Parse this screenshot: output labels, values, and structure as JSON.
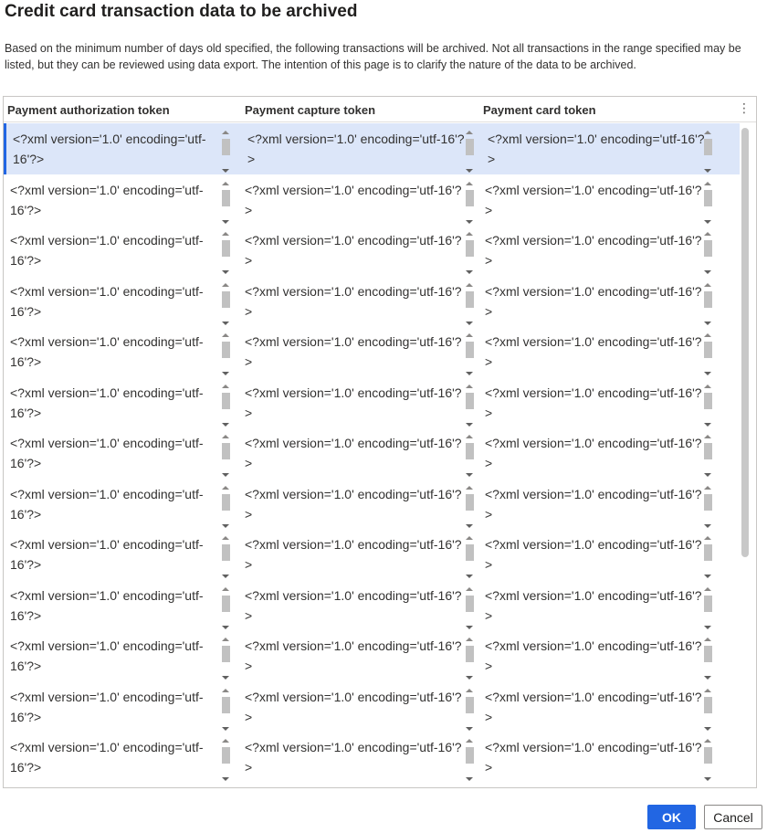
{
  "dialog": {
    "title": "Credit card transaction data to be archived",
    "description": "Based on the minimum number of days old specified, the following transactions will be archived. Not all transactions in the range specified may be listed, but they can be reviewed using data export. The intention of this page is to clarify the nature of the data to be archived."
  },
  "grid": {
    "columns": [
      "Payment authorization token",
      "Payment capture token",
      "Payment card token"
    ],
    "menu_glyph": "⋮",
    "rows": [
      {
        "auth": "<?xml version='1.0' encoding='utf-16'?>",
        "capture": "<?xml version='1.0' encoding='utf-16'?>",
        "card": "<?xml version='1.0' encoding='utf-16'?>"
      },
      {
        "auth": "<?xml version='1.0' encoding='utf-16'?>",
        "capture": "<?xml version='1.0' encoding='utf-16'?>",
        "card": "<?xml version='1.0' encoding='utf-16'?>"
      },
      {
        "auth": "<?xml version='1.0' encoding='utf-16'?>",
        "capture": "<?xml version='1.0' encoding='utf-16'?>",
        "card": "<?xml version='1.0' encoding='utf-16'?>"
      },
      {
        "auth": "<?xml version='1.0' encoding='utf-16'?>",
        "capture": "<?xml version='1.0' encoding='utf-16'?>",
        "card": "<?xml version='1.0' encoding='utf-16'?>"
      },
      {
        "auth": "<?xml version='1.0' encoding='utf-16'?>",
        "capture": "<?xml version='1.0' encoding='utf-16'?>",
        "card": "<?xml version='1.0' encoding='utf-16'?>"
      },
      {
        "auth": "<?xml version='1.0' encoding='utf-16'?>",
        "capture": "<?xml version='1.0' encoding='utf-16'?>",
        "card": "<?xml version='1.0' encoding='utf-16'?>"
      },
      {
        "auth": "<?xml version='1.0' encoding='utf-16'?>",
        "capture": "<?xml version='1.0' encoding='utf-16'?>",
        "card": "<?xml version='1.0' encoding='utf-16'?>"
      },
      {
        "auth": "<?xml version='1.0' encoding='utf-16'?>",
        "capture": "<?xml version='1.0' encoding='utf-16'?>",
        "card": "<?xml version='1.0' encoding='utf-16'?>"
      },
      {
        "auth": "<?xml version='1.0' encoding='utf-16'?>",
        "capture": "<?xml version='1.0' encoding='utf-16'?>",
        "card": "<?xml version='1.0' encoding='utf-16'?>"
      },
      {
        "auth": "<?xml version='1.0' encoding='utf-16'?>",
        "capture": "<?xml version='1.0' encoding='utf-16'?>",
        "card": "<?xml version='1.0' encoding='utf-16'?>"
      },
      {
        "auth": "<?xml version='1.0' encoding='utf-16'?>",
        "capture": "<?xml version='1.0' encoding='utf-16'?>",
        "card": "<?xml version='1.0' encoding='utf-16'?>"
      },
      {
        "auth": "<?xml version='1.0' encoding='utf-16'?>",
        "capture": "<?xml version='1.0' encoding='utf-16'?>",
        "card": "<?xml version='1.0' encoding='utf-16'?>"
      },
      {
        "auth": "<?xml version='1.0' encoding='utf-16'?>",
        "capture": "<?xml version='1.0' encoding='utf-16'?>",
        "card": "<?xml version='1.0' encoding='utf-16'?>"
      }
    ]
  },
  "buttons": {
    "ok": "OK",
    "cancel": "Cancel"
  },
  "colors": {
    "accent": "#2266e3",
    "selected_row": "#dce6f9"
  }
}
